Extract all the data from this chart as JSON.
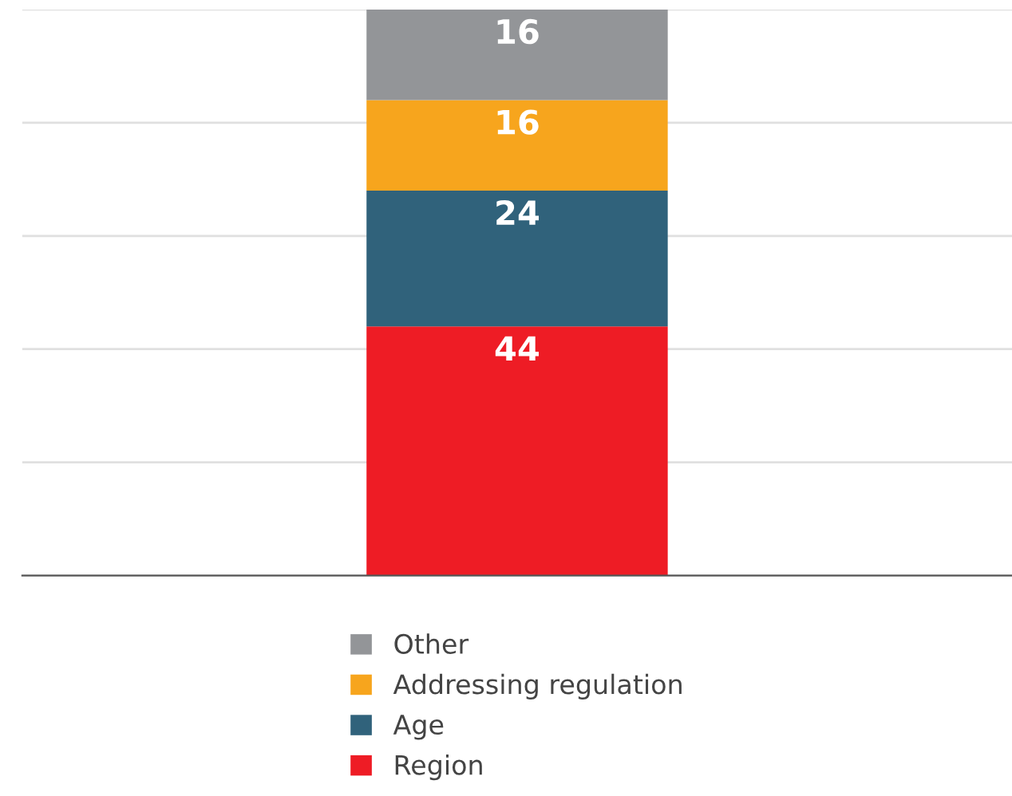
{
  "chart_data": {
    "type": "bar",
    "stacked": true,
    "categories": [
      null
    ],
    "series": [
      {
        "name": "Region",
        "color": "#ee1c25",
        "values": [
          44
        ]
      },
      {
        "name": "Age",
        "color": "#30627b",
        "values": [
          24
        ]
      },
      {
        "name": "Addressing regulation",
        "color": "#f7a51d",
        "values": [
          16
        ]
      },
      {
        "name": "Other",
        "color": "#939598",
        "values": [
          16
        ]
      }
    ],
    "ylim": [
      0,
      100
    ],
    "yticks": [
      {
        "value": 0,
        "label": null
      },
      {
        "value": 20,
        "label": null
      },
      {
        "value": 40,
        "label": null
      },
      {
        "value": 60,
        "label": null
      },
      {
        "value": 80,
        "label": null
      },
      {
        "value": 100,
        "label": null
      }
    ],
    "grid": "y",
    "data_labels": true,
    "legend": "bottom"
  }
}
